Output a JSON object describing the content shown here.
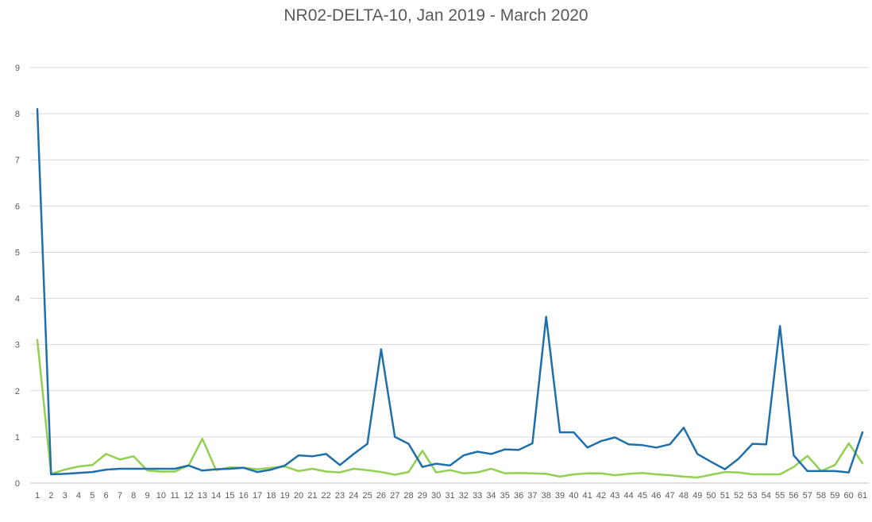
{
  "chart_data": {
    "type": "line",
    "title": "NR02-DELTA-10, Jan 2019 - March 2020",
    "xlabel": "",
    "ylabel": "",
    "ylim": [
      0,
      9
    ],
    "yticks": [
      0,
      1,
      2,
      3,
      4,
      5,
      6,
      7,
      8,
      9
    ],
    "x": [
      1,
      2,
      3,
      4,
      5,
      6,
      7,
      8,
      9,
      10,
      11,
      12,
      13,
      14,
      15,
      16,
      17,
      18,
      19,
      20,
      21,
      22,
      23,
      24,
      25,
      26,
      27,
      28,
      29,
      30,
      31,
      32,
      33,
      34,
      35,
      36,
      37,
      38,
      39,
      40,
      41,
      42,
      43,
      44,
      45,
      46,
      47,
      48,
      49,
      50,
      51,
      52,
      53,
      54,
      55,
      56,
      57,
      58,
      59,
      60,
      61
    ],
    "grid": true,
    "legend": "none",
    "series": [
      {
        "color": "#1f6fab",
        "values": [
          8.1,
          0.19,
          0.2,
          0.22,
          0.24,
          0.29,
          0.31,
          0.31,
          0.31,
          0.31,
          0.31,
          0.38,
          0.27,
          0.3,
          0.31,
          0.33,
          0.24,
          0.29,
          0.38,
          0.6,
          0.58,
          0.63,
          0.39,
          0.63,
          0.85,
          2.9,
          1.0,
          0.85,
          0.35,
          0.42,
          0.38,
          0.6,
          0.68,
          0.63,
          0.73,
          0.72,
          0.86,
          3.6,
          1.1,
          1.1,
          0.77,
          0.91,
          0.99,
          0.84,
          0.82,
          0.77,
          0.84,
          1.2,
          0.63,
          0.46,
          0.3,
          0.53,
          0.85,
          0.84,
          3.4,
          0.6,
          0.26,
          0.26,
          0.26,
          0.23,
          1.1
        ]
      },
      {
        "color": "#92d050",
        "values": [
          3.1,
          0.2,
          0.29,
          0.36,
          0.39,
          0.63,
          0.51,
          0.58,
          0.27,
          0.25,
          0.25,
          0.38,
          0.96,
          0.28,
          0.34,
          0.33,
          0.3,
          0.33,
          0.36,
          0.26,
          0.31,
          0.25,
          0.23,
          0.31,
          0.28,
          0.24,
          0.18,
          0.24,
          0.7,
          0.23,
          0.28,
          0.21,
          0.23,
          0.31,
          0.21,
          0.22,
          0.21,
          0.2,
          0.14,
          0.19,
          0.21,
          0.21,
          0.17,
          0.2,
          0.22,
          0.19,
          0.17,
          0.14,
          0.12,
          0.18,
          0.24,
          0.23,
          0.19,
          0.19,
          0.19,
          0.35,
          0.59,
          0.26,
          0.39,
          0.86,
          0.43
        ]
      }
    ]
  }
}
